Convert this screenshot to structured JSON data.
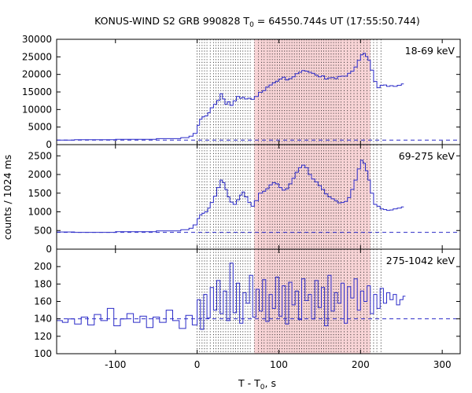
{
  "chart_data": {
    "type": "line",
    "title_main": "KONUS-WIND S2 GRB 990828 T",
    "title_sub": "0",
    "title_rest": " = 64550.744s UT (17:55:50.744)",
    "xlabel_main": "T - T",
    "xlabel_sub": "0",
    "xlabel_rest": ", s",
    "ylabel": "counts / 1024 ms",
    "xlim": [
      -172,
      322
    ],
    "x_ticks": [
      -100,
      0,
      100,
      200,
      300
    ],
    "x_tick_labels": [
      "-100",
      "0",
      "100",
      "200",
      "300"
    ],
    "grid": false,
    "colors": {
      "series": "#2b2bc8",
      "background_marker": "#2b2bc8",
      "shaded_interval": "#f8d4d6",
      "interval_lines": "#222222"
    },
    "shaded_interval": [
      70,
      212
    ],
    "trigger_interval_lines": [
      0,
      3,
      6,
      9,
      12,
      16,
      20,
      23,
      26,
      29,
      32,
      35,
      38,
      41,
      44,
      47,
      50,
      53,
      56,
      59,
      62,
      65,
      70,
      75,
      79,
      82,
      86,
      89,
      92,
      95,
      98,
      101,
      104,
      107,
      110,
      113,
      116,
      119,
      122,
      125,
      128,
      131,
      134,
      137,
      140,
      143,
      146,
      149,
      152,
      155,
      158,
      161,
      164,
      167,
      170,
      173,
      176,
      180,
      184,
      188,
      192,
      196,
      200,
      204,
      208,
      212,
      216,
      220,
      225
    ],
    "panels": [
      {
        "band": "18-69 keV",
        "ylim": [
          0,
          30000
        ],
        "y_ticks": [
          0,
          5000,
          10000,
          15000,
          20000,
          25000,
          30000
        ],
        "background_level": 1300,
        "series": {
          "x": [
            -172,
            -150,
            -100,
            -50,
            -20,
            -10,
            -5,
            0,
            3,
            6,
            9,
            13,
            16,
            20,
            24,
            28,
            31,
            34,
            37,
            40,
            44,
            48,
            52,
            55,
            58,
            62,
            66,
            70,
            75,
            80,
            84,
            88,
            92,
            96,
            100,
            104,
            108,
            112,
            116,
            120,
            124,
            128,
            132,
            136,
            140,
            144,
            148,
            152,
            156,
            160,
            164,
            168,
            172,
            176,
            180,
            184,
            188,
            192,
            196,
            200,
            203,
            206,
            209,
            212,
            216,
            220,
            224,
            228,
            232,
            236,
            240,
            245,
            250
          ],
          "y": [
            1300,
            1400,
            1500,
            1700,
            2000,
            2400,
            3200,
            5500,
            7200,
            7900,
            8200,
            9100,
            10500,
            11500,
            12600,
            14500,
            13000,
            11500,
            12200,
            11200,
            12500,
            13700,
            13200,
            13500,
            13000,
            13200,
            12900,
            13700,
            14900,
            15400,
            16400,
            17000,
            17600,
            18100,
            18700,
            19200,
            18400,
            18800,
            19300,
            20200,
            20600,
            21100,
            20900,
            20600,
            20300,
            19800,
            19300,
            19600,
            18700,
            19000,
            19100,
            18800,
            19400,
            19500,
            19500,
            20300,
            20900,
            22100,
            24000,
            25600,
            26000,
            25100,
            24000,
            21200,
            18000,
            16200,
            16900,
            17000,
            16600,
            16800,
            16600,
            16900,
            17300
          ]
        }
      },
      {
        "band": "69-275 keV",
        "ylim": [
          0,
          2800
        ],
        "y_ticks": [
          0,
          500,
          1000,
          1500,
          2000,
          2500
        ],
        "background_level": 450,
        "series": {
          "x": [
            -172,
            -150,
            -100,
            -50,
            -20,
            -10,
            -5,
            0,
            3,
            6,
            9,
            13,
            16,
            20,
            24,
            28,
            31,
            34,
            37,
            40,
            44,
            48,
            52,
            55,
            58,
            62,
            66,
            70,
            75,
            80,
            84,
            88,
            92,
            96,
            100,
            104,
            108,
            112,
            116,
            120,
            124,
            128,
            132,
            136,
            140,
            144,
            148,
            152,
            156,
            160,
            164,
            168,
            172,
            176,
            180,
            184,
            188,
            192,
            196,
            200,
            203,
            206,
            209,
            212,
            216,
            220,
            224,
            228,
            232,
            236,
            240,
            245,
            250
          ],
          "y": [
            460,
            450,
            470,
            490,
            520,
            560,
            650,
            820,
            920,
            960,
            1000,
            1100,
            1250,
            1420,
            1650,
            1850,
            1780,
            1600,
            1400,
            1260,
            1200,
            1320,
            1450,
            1530,
            1400,
            1250,
            1150,
            1300,
            1500,
            1550,
            1620,
            1720,
            1780,
            1750,
            1650,
            1580,
            1620,
            1750,
            1900,
            2060,
            2180,
            2250,
            2180,
            2000,
            1880,
            1800,
            1700,
            1600,
            1480,
            1400,
            1350,
            1300,
            1240,
            1250,
            1280,
            1380,
            1600,
            1850,
            2150,
            2380,
            2300,
            2100,
            1850,
            1500,
            1200,
            1150,
            1080,
            1060,
            1040,
            1050,
            1080,
            1100,
            1130
          ]
        }
      },
      {
        "band": "275-1042 keV",
        "ylim": [
          100,
          220
        ],
        "y_ticks": [
          100,
          120,
          140,
          160,
          180,
          200
        ],
        "background_level": 140,
        "series": {
          "x": [
            -172,
            -165,
            -158,
            -150,
            -142,
            -134,
            -126,
            -118,
            -110,
            -102,
            -94,
            -86,
            -78,
            -70,
            -62,
            -54,
            -46,
            -38,
            -30,
            -22,
            -14,
            -6,
            0,
            4,
            8,
            12,
            16,
            20,
            24,
            28,
            32,
            36,
            40,
            44,
            48,
            52,
            56,
            60,
            64,
            68,
            72,
            76,
            80,
            84,
            88,
            92,
            96,
            100,
            104,
            108,
            112,
            116,
            120,
            124,
            128,
            132,
            136,
            140,
            144,
            148,
            152,
            156,
            160,
            164,
            168,
            172,
            176,
            180,
            184,
            188,
            192,
            196,
            200,
            204,
            208,
            212,
            216,
            220,
            224,
            228,
            232,
            236,
            240,
            244,
            248,
            252
          ],
          "y": [
            138,
            136,
            140,
            134,
            142,
            133,
            145,
            138,
            152,
            132,
            140,
            146,
            136,
            143,
            130,
            142,
            136,
            150,
            138,
            129,
            144,
            133,
            162,
            128,
            168,
            141,
            176,
            150,
            184,
            146,
            172,
            138,
            204,
            147,
            181,
            135,
            170,
            158,
            190,
            142,
            174,
            149,
            185,
            137,
            168,
            152,
            188,
            143,
            178,
            134,
            182,
            156,
            172,
            139,
            186,
            161,
            168,
            140,
            184,
            153,
            176,
            132,
            190,
            149,
            170,
            158,
            181,
            135,
            177,
            164,
            186,
            150,
            172,
            160,
            178,
            146,
            168,
            152,
            175,
            158,
            170,
            162,
            168,
            156,
            162,
            166
          ]
        }
      }
    ]
  }
}
